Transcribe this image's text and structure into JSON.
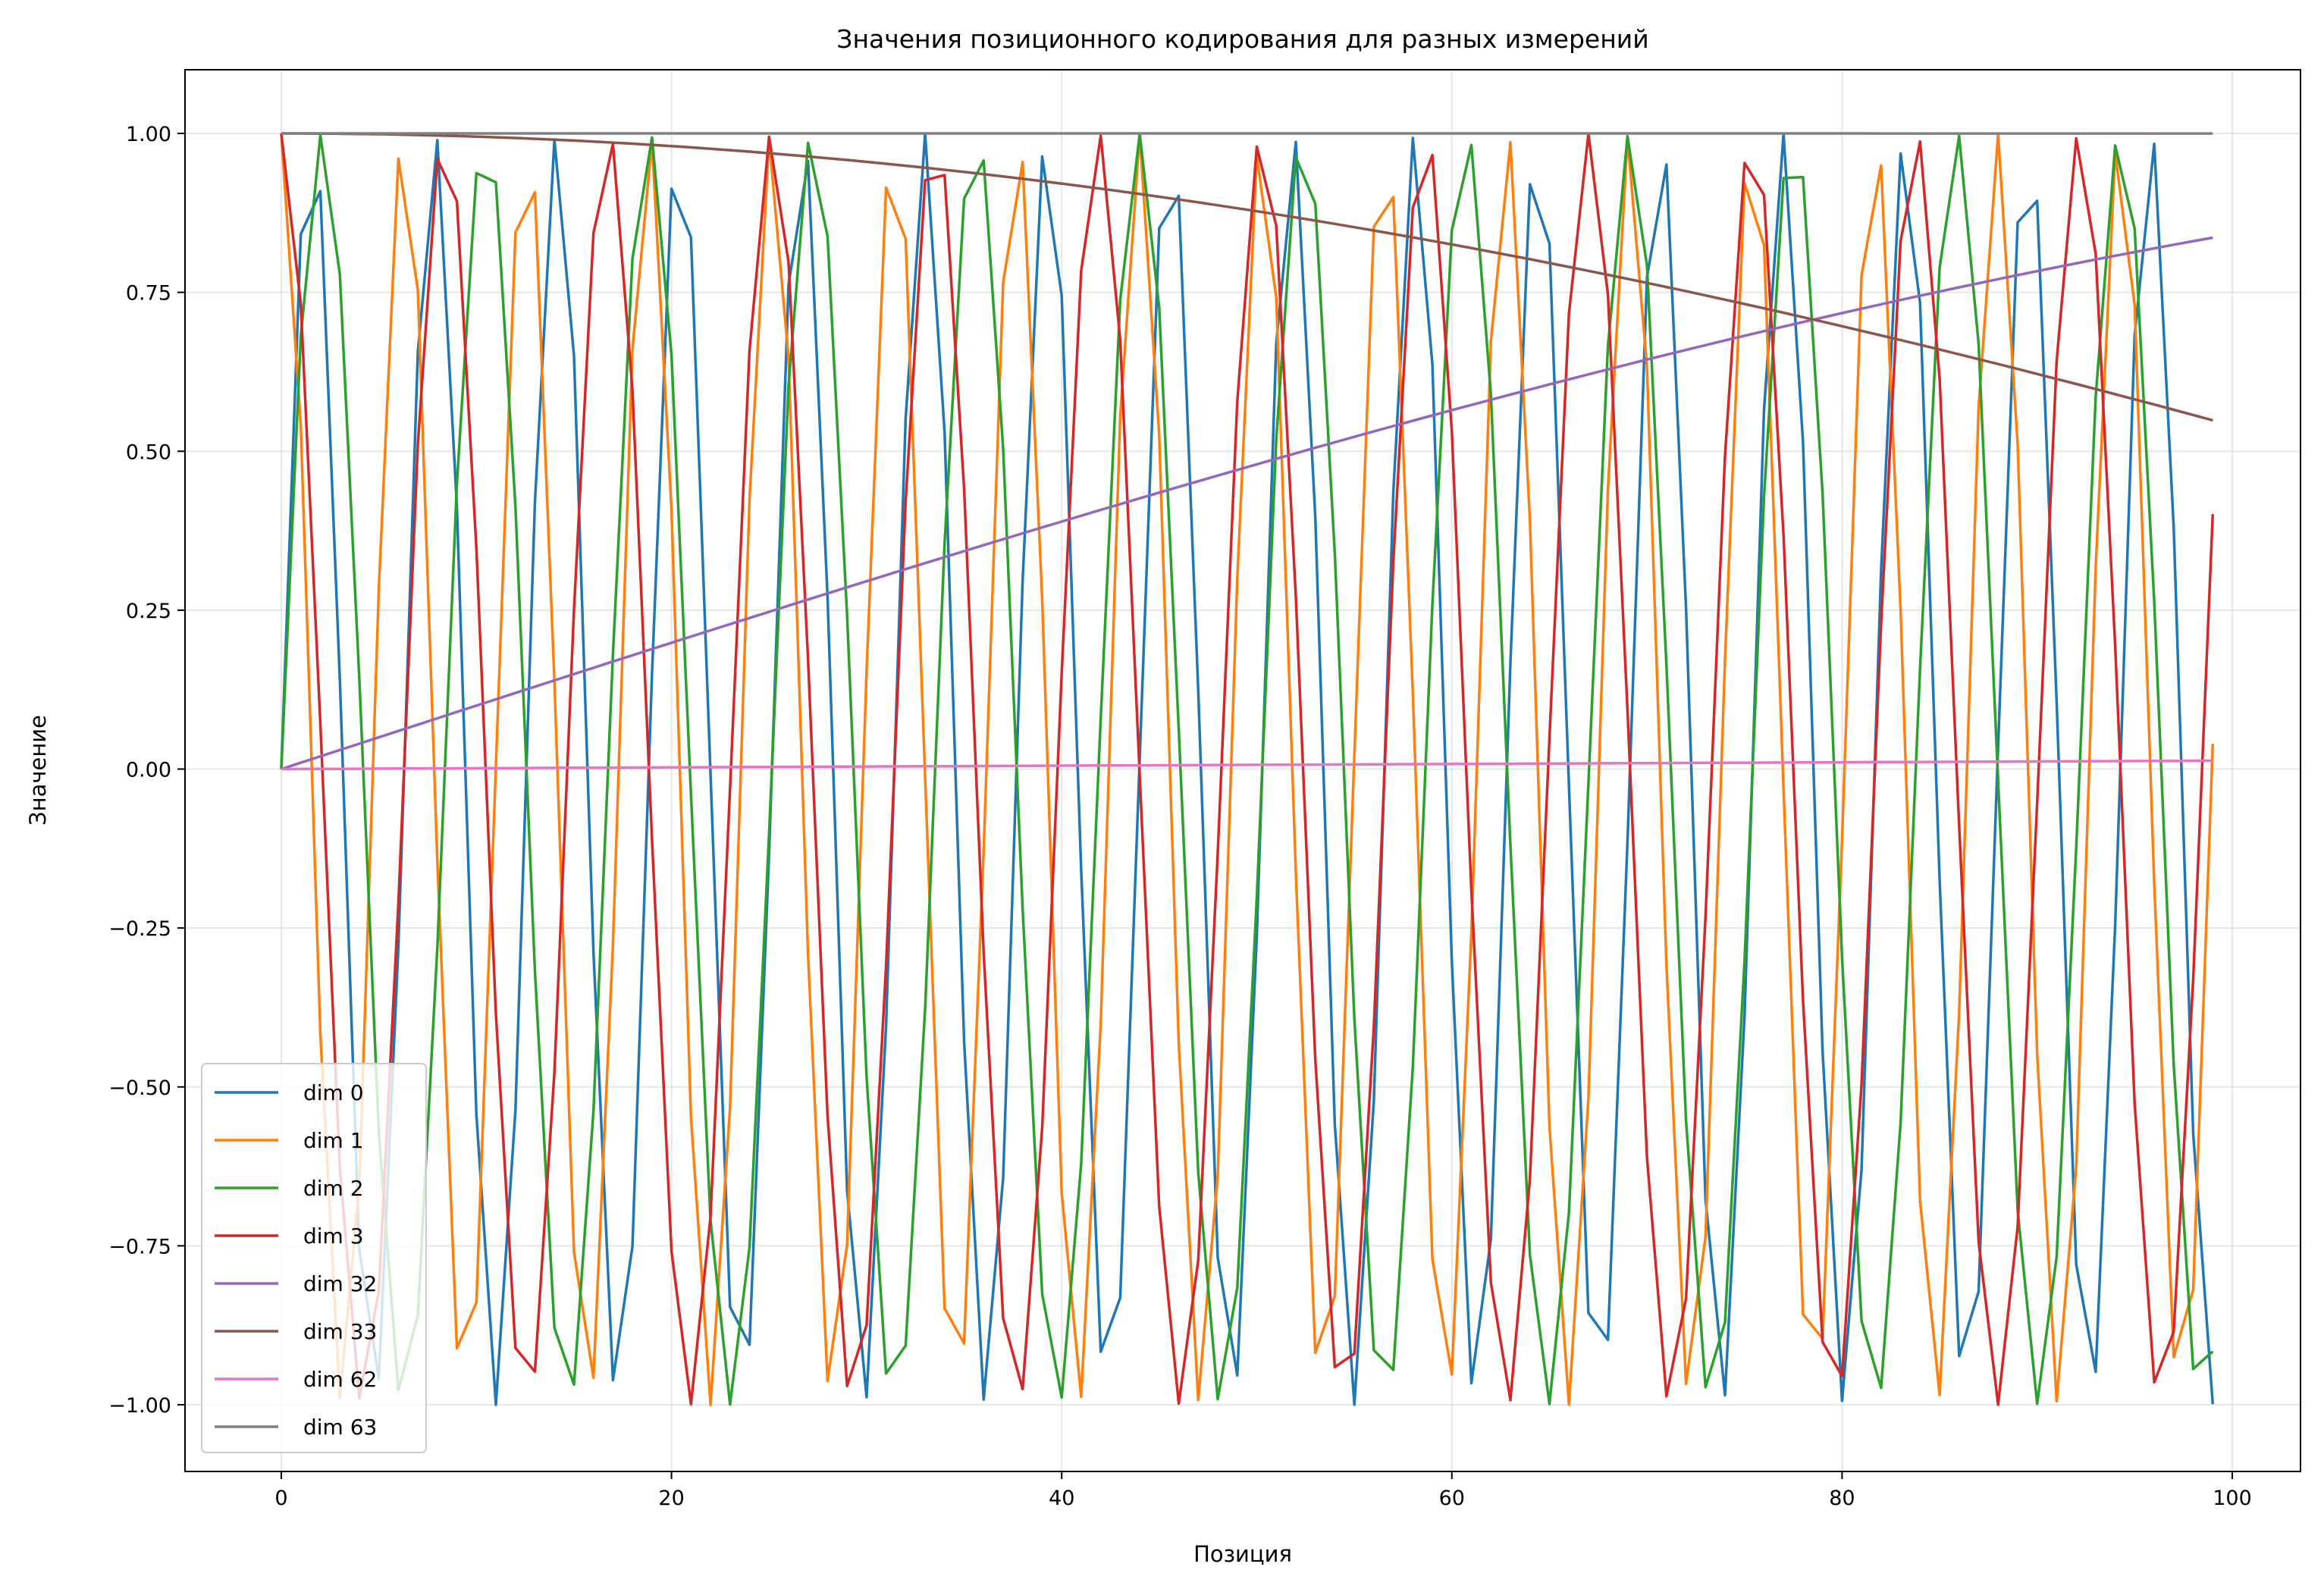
{
  "chart_data": {
    "type": "line",
    "title": "Значения позиционного кодирования для разных измерений",
    "xlabel": "Позиция",
    "ylabel": "Значение",
    "xlim": [
      -4.95,
      103.95
    ],
    "ylim": [
      -1.1,
      1.1
    ],
    "xticks": [
      0,
      20,
      40,
      60,
      80,
      100
    ],
    "xtick_labels": [
      "0",
      "20",
      "40",
      "60",
      "80",
      "100"
    ],
    "yticks": [
      -1.0,
      -0.75,
      -0.5,
      -0.25,
      0.0,
      0.25,
      0.5,
      0.75,
      1.0
    ],
    "ytick_labels": [
      "−1.00",
      "−0.75",
      "−0.50",
      "−0.25",
      "0.00",
      "0.25",
      "0.50",
      "0.75",
      "1.00"
    ],
    "grid": true,
    "legend_position": "lower-left",
    "x": {
      "start": 0,
      "end": 99,
      "step": 1
    },
    "series": [
      {
        "name": "dim 0",
        "function": "sin",
        "frequency": 1.0,
        "color": "#1f77b4"
      },
      {
        "name": "dim 1",
        "function": "cos",
        "frequency": 1.0,
        "color": "#ff7f0e"
      },
      {
        "name": "dim 2",
        "function": "sin",
        "frequency": 0.7499,
        "color": "#2ca02c"
      },
      {
        "name": "dim 3",
        "function": "cos",
        "frequency": 0.7499,
        "color": "#d62728"
      },
      {
        "name": "dim 32",
        "function": "sin",
        "frequency": 0.01,
        "color": "#9467bd"
      },
      {
        "name": "dim 33",
        "function": "cos",
        "frequency": 0.01,
        "color": "#8c564b"
      },
      {
        "name": "dim 62",
        "function": "sin",
        "frequency": 0.00013335,
        "color": "#e377c2"
      },
      {
        "name": "dim 63",
        "function": "cos",
        "frequency": 0.00013335,
        "color": "#7f7f7f"
      }
    ]
  }
}
